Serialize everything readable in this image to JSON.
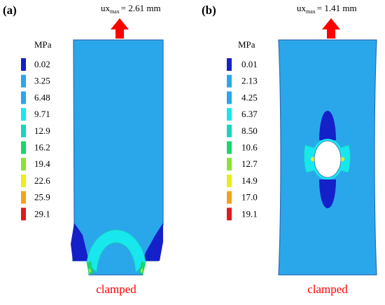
{
  "colors": {
    "bg": "#ffffff",
    "arrow": "#ff0000",
    "clamped": "#ff0000",
    "outline": "#2a6bb8",
    "specimen_fill": "#2aa7ea",
    "ramp": [
      "#1420c8",
      "#2aa7ea",
      "#2aa7ea",
      "#19e7ee",
      "#16d6bd",
      "#19d66d",
      "#88e432",
      "#e9ed1c",
      "#f4a21c",
      "#e01a1a"
    ]
  },
  "panels": [
    {
      "label": "(a)",
      "disp": {
        "prefix": "ux",
        "sub": "max",
        "value": "= 2.61 mm"
      },
      "unit": "MPa",
      "legend": [
        "0.02",
        "3.25",
        "6.48",
        "9.71",
        "12.9",
        "16.2",
        "19.4",
        "22.6",
        "25.9",
        "29.1"
      ],
      "clamped": "clamped"
    },
    {
      "label": "(b)",
      "disp": {
        "prefix": "ux",
        "sub": "max",
        "value": "= 1.41 mm"
      },
      "unit": "MPa",
      "legend": [
        "0.01",
        "2.13",
        "4.25",
        "6.37",
        "8.50",
        "10.6",
        "12.7",
        "14.9",
        "17.0",
        "19.1"
      ],
      "clamped": "clamped"
    }
  ]
}
